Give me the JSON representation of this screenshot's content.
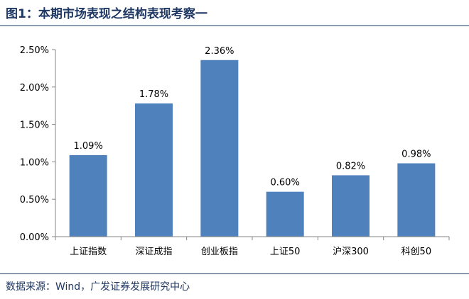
{
  "figure": {
    "title": "图1：本期市场表现之结构表现考察一",
    "source": "数据来源：Wind，广发证券发展研究中心"
  },
  "colors": {
    "bar": "#4f81bd",
    "title": "#1f3864",
    "axis": "#868686"
  },
  "chart_data": {
    "type": "bar",
    "categories": [
      "上证指数",
      "深证成指",
      "创业板指",
      "上证50",
      "沪深300",
      "科创50"
    ],
    "values": [
      1.09,
      1.78,
      2.36,
      0.6,
      0.82,
      0.98
    ],
    "data_labels": [
      "1.09%",
      "1.78%",
      "2.36%",
      "0.60%",
      "0.82%",
      "0.98%"
    ],
    "y_ticks": [
      "0.00%",
      "0.50%",
      "1.00%",
      "1.50%",
      "2.00%",
      "2.50%"
    ],
    "ylim": [
      0,
      2.5
    ],
    "grid": false,
    "legend": "none"
  }
}
